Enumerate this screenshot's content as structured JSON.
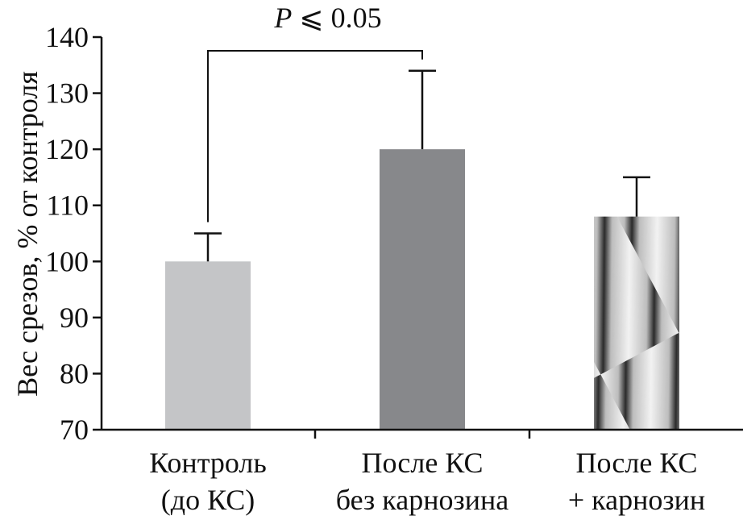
{
  "chart_data": {
    "type": "bar",
    "ylabel": "Вес срезов, % от контроля",
    "ylim": [
      70,
      140
    ],
    "yticks": [
      70,
      80,
      90,
      100,
      110,
      120,
      130,
      140
    ],
    "grid": false,
    "categories": [
      {
        "line1": "Контроль",
        "line2": "(до КС)"
      },
      {
        "line1": "После КС",
        "line2": "без карнозина"
      },
      {
        "line1": "После КС",
        "line2": "+ карнозин"
      }
    ],
    "values": [
      100,
      120,
      108
    ],
    "errors": [
      5,
      14,
      7
    ],
    "colors": [
      "#c4c5c7",
      "#87888b",
      "pattern-diagonal-gradient"
    ],
    "annotation": {
      "italic": "P",
      "text": " ⩽ 0.05",
      "between": [
        0,
        1
      ]
    }
  }
}
